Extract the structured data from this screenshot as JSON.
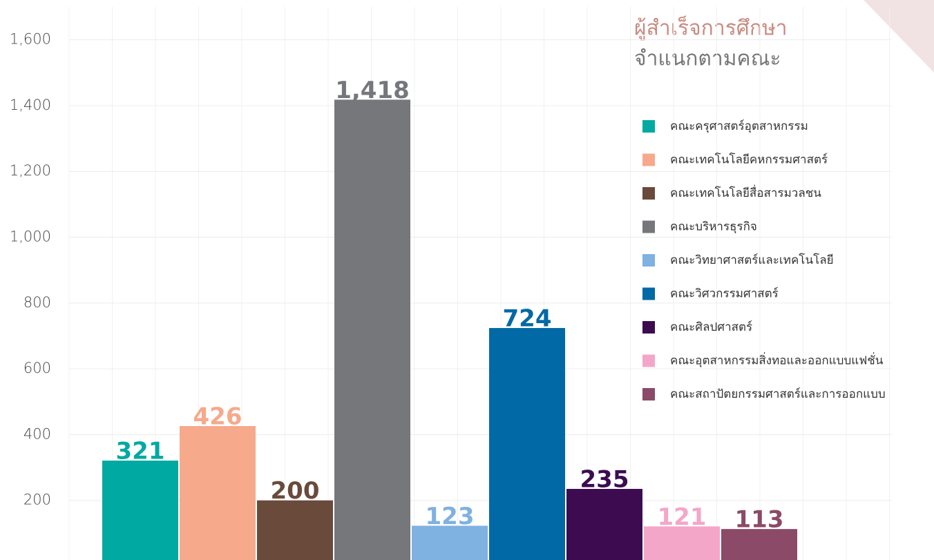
{
  "chart_data": {
    "type": "bar",
    "title": "ผู้สำเร็จการศึกษา",
    "subtitle": "จำแนกตามคณะ",
    "categories": [
      "คณะครุศาสตร์อุตสาหกรรม",
      "คณะเทคโนโลยีคหกรรมศาสตร์",
      "คณะเทคโนโลยีสื่อสารมวลชน",
      "คณะบริหารธุรกิจ",
      "คณะวิทยาศาสตร์และเทคโนโลยี",
      "คณะวิศวกรรมศาสตร์",
      "คณะศิลปศาสตร์",
      "คณะอุตสาหกรรมสิ่งทอและออกแบบแฟชั่น",
      "คณะสถาปัตยกรรมศาสตร์และการออกแบบ"
    ],
    "values": [
      321,
      426,
      200,
      1418,
      123,
      724,
      235,
      121,
      113
    ],
    "value_labels": [
      "321",
      "426",
      "200",
      "1,418",
      "123",
      "724",
      "235",
      "121",
      "113"
    ],
    "colors": [
      "#00a9a1",
      "#f6a98b",
      "#6a4a3b",
      "#76777b",
      "#7fb1e1",
      "#0069a6",
      "#3c0b50",
      "#f4a6c9",
      "#8b4a67"
    ],
    "ylim": [
      0,
      1700
    ],
    "yticks": [
      {
        "value": 200,
        "label": "200"
      },
      {
        "value": 400,
        "label": "400"
      },
      {
        "value": 600,
        "label": "600"
      },
      {
        "value": 800,
        "label": "800"
      },
      {
        "value": 1000,
        "label": "1,000"
      },
      {
        "value": 1200,
        "label": "1,200"
      },
      {
        "value": 1400,
        "label": "1,400"
      },
      {
        "value": 1600,
        "label": "1,600"
      }
    ],
    "grid": true
  }
}
